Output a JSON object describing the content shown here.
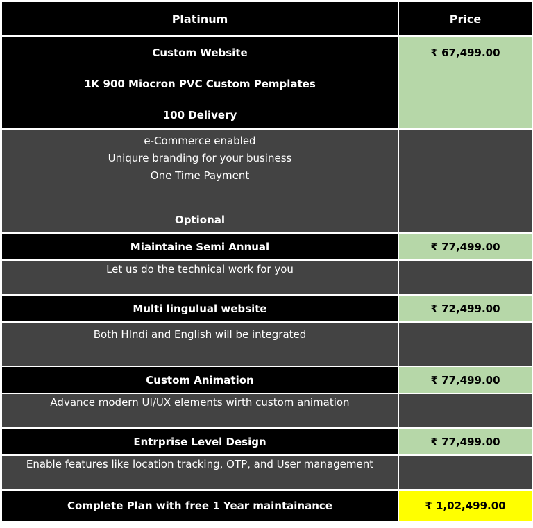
{
  "header": {
    "col1": "Platinum",
    "col2": "Price"
  },
  "platinum": {
    "features": [
      "Custom Website",
      "1K 900 Miocron PVC Custom Pemplates",
      "100 Delivery"
    ],
    "price": "₹ 67,499.00",
    "details": [
      "e-Commerce enabled",
      "Uniqure branding for your business",
      "One Time Payment"
    ]
  },
  "optional_label": "Optional",
  "options": [
    {
      "title": "Miaintaine Semi Annual",
      "price": "₹ 77,499.00",
      "description": "Let us do the technical work for you"
    },
    {
      "title": "Multi lingulual website",
      "price": "₹ 72,499.00",
      "description": "Both HIndi and English will be integrated"
    },
    {
      "title": "Custom Animation",
      "price": "₹ 77,499.00",
      "description": "Advance modern UI/UX elements wirth custom animation"
    },
    {
      "title": "Entrprise Level Design",
      "price": "₹ 77,499.00",
      "description": "Enable features like location tracking, OTP, and User management"
    }
  ],
  "complete_plan": {
    "title": "Complete Plan with free 1 Year maintainance",
    "price": "₹ 1,02,499.00"
  },
  "colors": {
    "header_bg": "#000000",
    "row_gray": "#434343",
    "price_green": "#b6d7a8",
    "price_yellow": "#ffff00"
  }
}
